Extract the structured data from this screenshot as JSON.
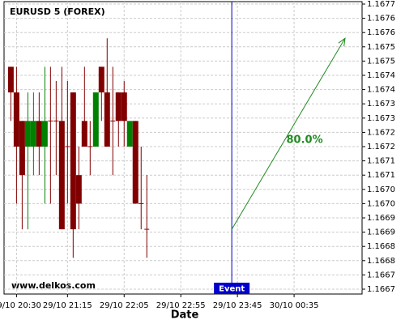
{
  "chart_data": {
    "type": "candlestick",
    "title": "EURUSD 5 (FOREX)",
    "watermark": "www.delkos.com",
    "x_label": "Date",
    "x": [
      "29/10 20:25",
      "29/10 20:30",
      "29/10 20:35",
      "29/10 20:40",
      "29/10 20:45",
      "29/10 20:50",
      "29/10 20:55",
      "29/10 21:00",
      "29/10 21:05",
      "29/10 21:10",
      "29/10 21:15",
      "29/10 21:20",
      "29/10 21:25",
      "29/10 21:30",
      "29/10 21:35",
      "29/10 21:40",
      "29/10 21:45",
      "29/10 21:50",
      "29/10 21:55",
      "29/10 22:00",
      "29/10 22:05",
      "29/10 22:10",
      "29/10 22:15",
      "29/10 22:20",
      "29/10 22:25"
    ],
    "open": [
      1.16748,
      1.16739,
      1.16729,
      1.1672,
      1.1672,
      1.16729,
      1.1672,
      1.16729,
      1.16729,
      1.16729,
      1.1672,
      1.16739,
      1.1671,
      1.16729,
      1.1672,
      1.1672,
      1.16748,
      1.16739,
      1.16729,
      1.16739,
      1.16739,
      1.1672,
      1.16729,
      1.167,
      1.16691
    ],
    "high": [
      1.16748,
      1.16748,
      1.16729,
      1.16739,
      1.16739,
      1.16739,
      1.16748,
      1.16748,
      1.16743,
      1.16748,
      1.16743,
      1.16739,
      1.1672,
      1.16748,
      1.16729,
      1.16739,
      1.16748,
      1.16758,
      1.16748,
      1.16739,
      1.16743,
      1.16729,
      1.16729,
      1.1672,
      1.1671
    ],
    "low": [
      1.16729,
      1.167,
      1.16691,
      1.16691,
      1.1671,
      1.1671,
      1.167,
      1.167,
      1.1671,
      1.16691,
      1.167,
      1.16681,
      1.16691,
      1.1672,
      1.1671,
      1.1672,
      1.16729,
      1.1672,
      1.1671,
      1.1672,
      1.1672,
      1.1672,
      1.167,
      1.16691,
      1.16681
    ],
    "close": [
      1.16739,
      1.1672,
      1.1671,
      1.16729,
      1.16729,
      1.1672,
      1.16729,
      1.16729,
      1.16729,
      1.16691,
      1.1672,
      1.16691,
      1.167,
      1.1672,
      1.1672,
      1.16739,
      1.16739,
      1.1672,
      1.16729,
      1.16729,
      1.16729,
      1.16729,
      1.167,
      1.167,
      1.16691
    ],
    "up_color": "#008000",
    "down_color": "#800000",
    "xlim": [
      "29/10 20:19",
      "30/10 01:35"
    ],
    "xticks": [
      "29/10 20:30",
      "29/10 21:15",
      "29/10 22:05",
      "29/10 22:55",
      "29/10 23:45",
      "30/10 00:35"
    ],
    "ylim": [
      1.1667,
      1.1677
    ],
    "yticks": [
      {
        "value": 1.1677,
        "label": "1.1677"
      },
      {
        "value": 1.16765,
        "label": "1.1676"
      },
      {
        "value": 1.1676,
        "label": "1.1676"
      },
      {
        "value": 1.16755,
        "label": "1.1675"
      },
      {
        "value": 1.1675,
        "label": "1.1675"
      },
      {
        "value": 1.16745,
        "label": "1.1674"
      },
      {
        "value": 1.1674,
        "label": "1.1674"
      },
      {
        "value": 1.16735,
        "label": "1.1673"
      },
      {
        "value": 1.1673,
        "label": "1.1673"
      },
      {
        "value": 1.16725,
        "label": "1.1672"
      },
      {
        "value": 1.1672,
        "label": "1.1672"
      },
      {
        "value": 1.16715,
        "label": "1.1671"
      },
      {
        "value": 1.1671,
        "label": "1.1671"
      },
      {
        "value": 1.16705,
        "label": "1.1670"
      },
      {
        "value": 1.167,
        "label": "1.1670"
      },
      {
        "value": 1.16695,
        "label": "1.1669"
      },
      {
        "value": 1.1669,
        "label": "1.1669"
      },
      {
        "value": 1.16685,
        "label": "1.1668"
      },
      {
        "value": 1.1668,
        "label": "1.1668"
      },
      {
        "value": 1.16675,
        "label": "1.1667"
      },
      {
        "value": 1.1667,
        "label": "1.1667"
      }
    ],
    "grid": true,
    "event": {
      "x": "29/10 23:40",
      "label": "Event",
      "color": "#0000cc"
    },
    "forecast": {
      "x": [
        "29/10 23:40",
        "30/10 01:20"
      ],
      "y": [
        1.16691,
        1.16758
      ],
      "label": "80.0%",
      "color": "#228b22"
    }
  }
}
